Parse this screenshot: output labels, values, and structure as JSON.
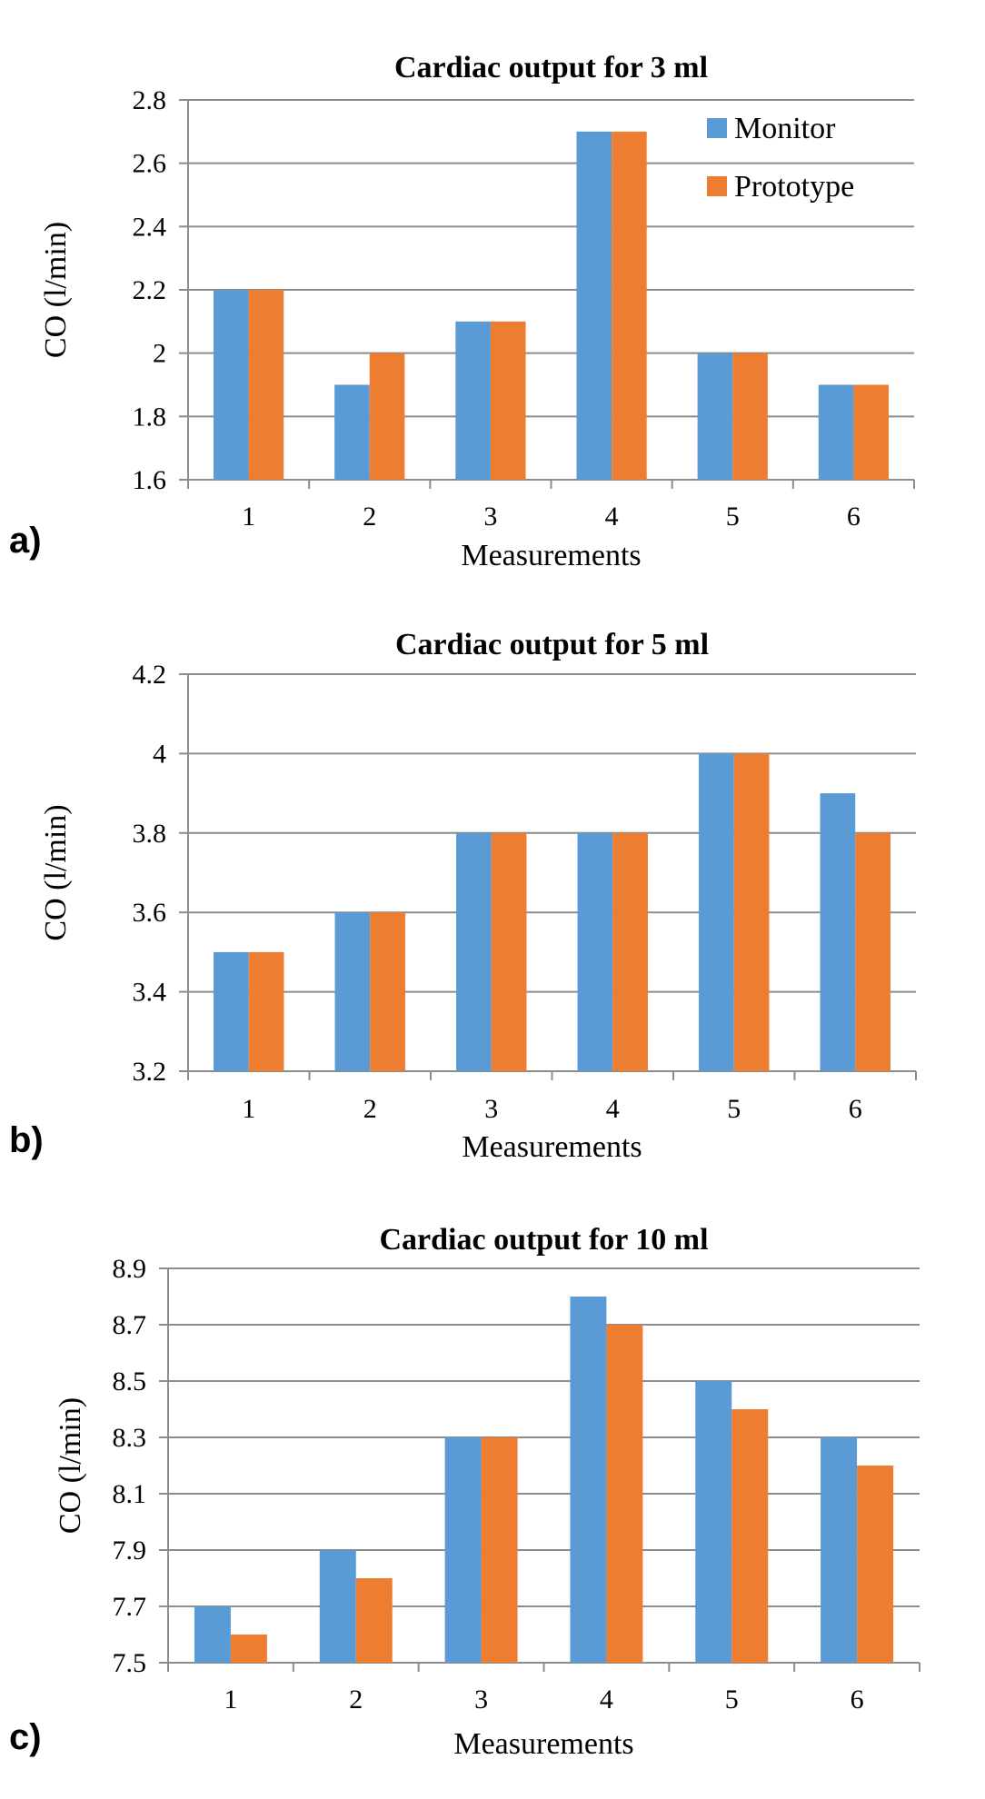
{
  "colors": {
    "monitor": "#5b9bd5",
    "prototype": "#ed7d31"
  },
  "chart_data": [
    {
      "type": "bar",
      "panel_label": "a)",
      "title": "Cardiac output for 3 ml",
      "xlabel": "Measurements",
      "ylabel": "CO (l/min)",
      "categories": [
        "1",
        "2",
        "3",
        "4",
        "5",
        "6"
      ],
      "ylim": [
        1.6,
        2.8
      ],
      "yticks": [
        "1.6",
        "1.8",
        "2",
        "2.2",
        "2.4",
        "2.6",
        "2.8"
      ],
      "legend": "top-right",
      "grid": true,
      "series": [
        {
          "name": "Monitor",
          "values": [
            2.2,
            1.9,
            2.1,
            2.7,
            2.0,
            1.9
          ]
        },
        {
          "name": "Prototype",
          "values": [
            2.2,
            2.0,
            2.1,
            2.7,
            2.0,
            1.9
          ]
        }
      ]
    },
    {
      "type": "bar",
      "panel_label": "b)",
      "title": "Cardiac output for 5 ml",
      "xlabel": "Measurements",
      "ylabel": "CO (l/min)",
      "categories": [
        "1",
        "2",
        "3",
        "4",
        "5",
        "6"
      ],
      "ylim": [
        3.2,
        4.2
      ],
      "yticks": [
        "3.2",
        "3.4",
        "3.6",
        "3.8",
        "4",
        "4.2"
      ],
      "legend": "none",
      "grid": true,
      "series": [
        {
          "name": "Monitor",
          "values": [
            3.5,
            3.6,
            3.8,
            3.8,
            4.0,
            3.9
          ]
        },
        {
          "name": "Prototype",
          "values": [
            3.5,
            3.6,
            3.8,
            3.8,
            4.0,
            3.8
          ]
        }
      ]
    },
    {
      "type": "bar",
      "panel_label": "c)",
      "title": "Cardiac output for 10 ml",
      "xlabel": "Measurements",
      "ylabel": "CO (l/min)",
      "categories": [
        "1",
        "2",
        "3",
        "4",
        "5",
        "6"
      ],
      "ylim": [
        7.5,
        8.9
      ],
      "yticks": [
        "7.5",
        "7.7",
        "7.9",
        "8.1",
        "8.3",
        "8.5",
        "8.7",
        "8.9"
      ],
      "legend": "none",
      "grid": true,
      "series": [
        {
          "name": "Monitor",
          "values": [
            7.7,
            7.9,
            8.3,
            8.8,
            8.5,
            8.3
          ]
        },
        {
          "name": "Prototype",
          "values": [
            7.6,
            7.8,
            8.3,
            8.7,
            8.4,
            8.2
          ]
        }
      ]
    }
  ]
}
